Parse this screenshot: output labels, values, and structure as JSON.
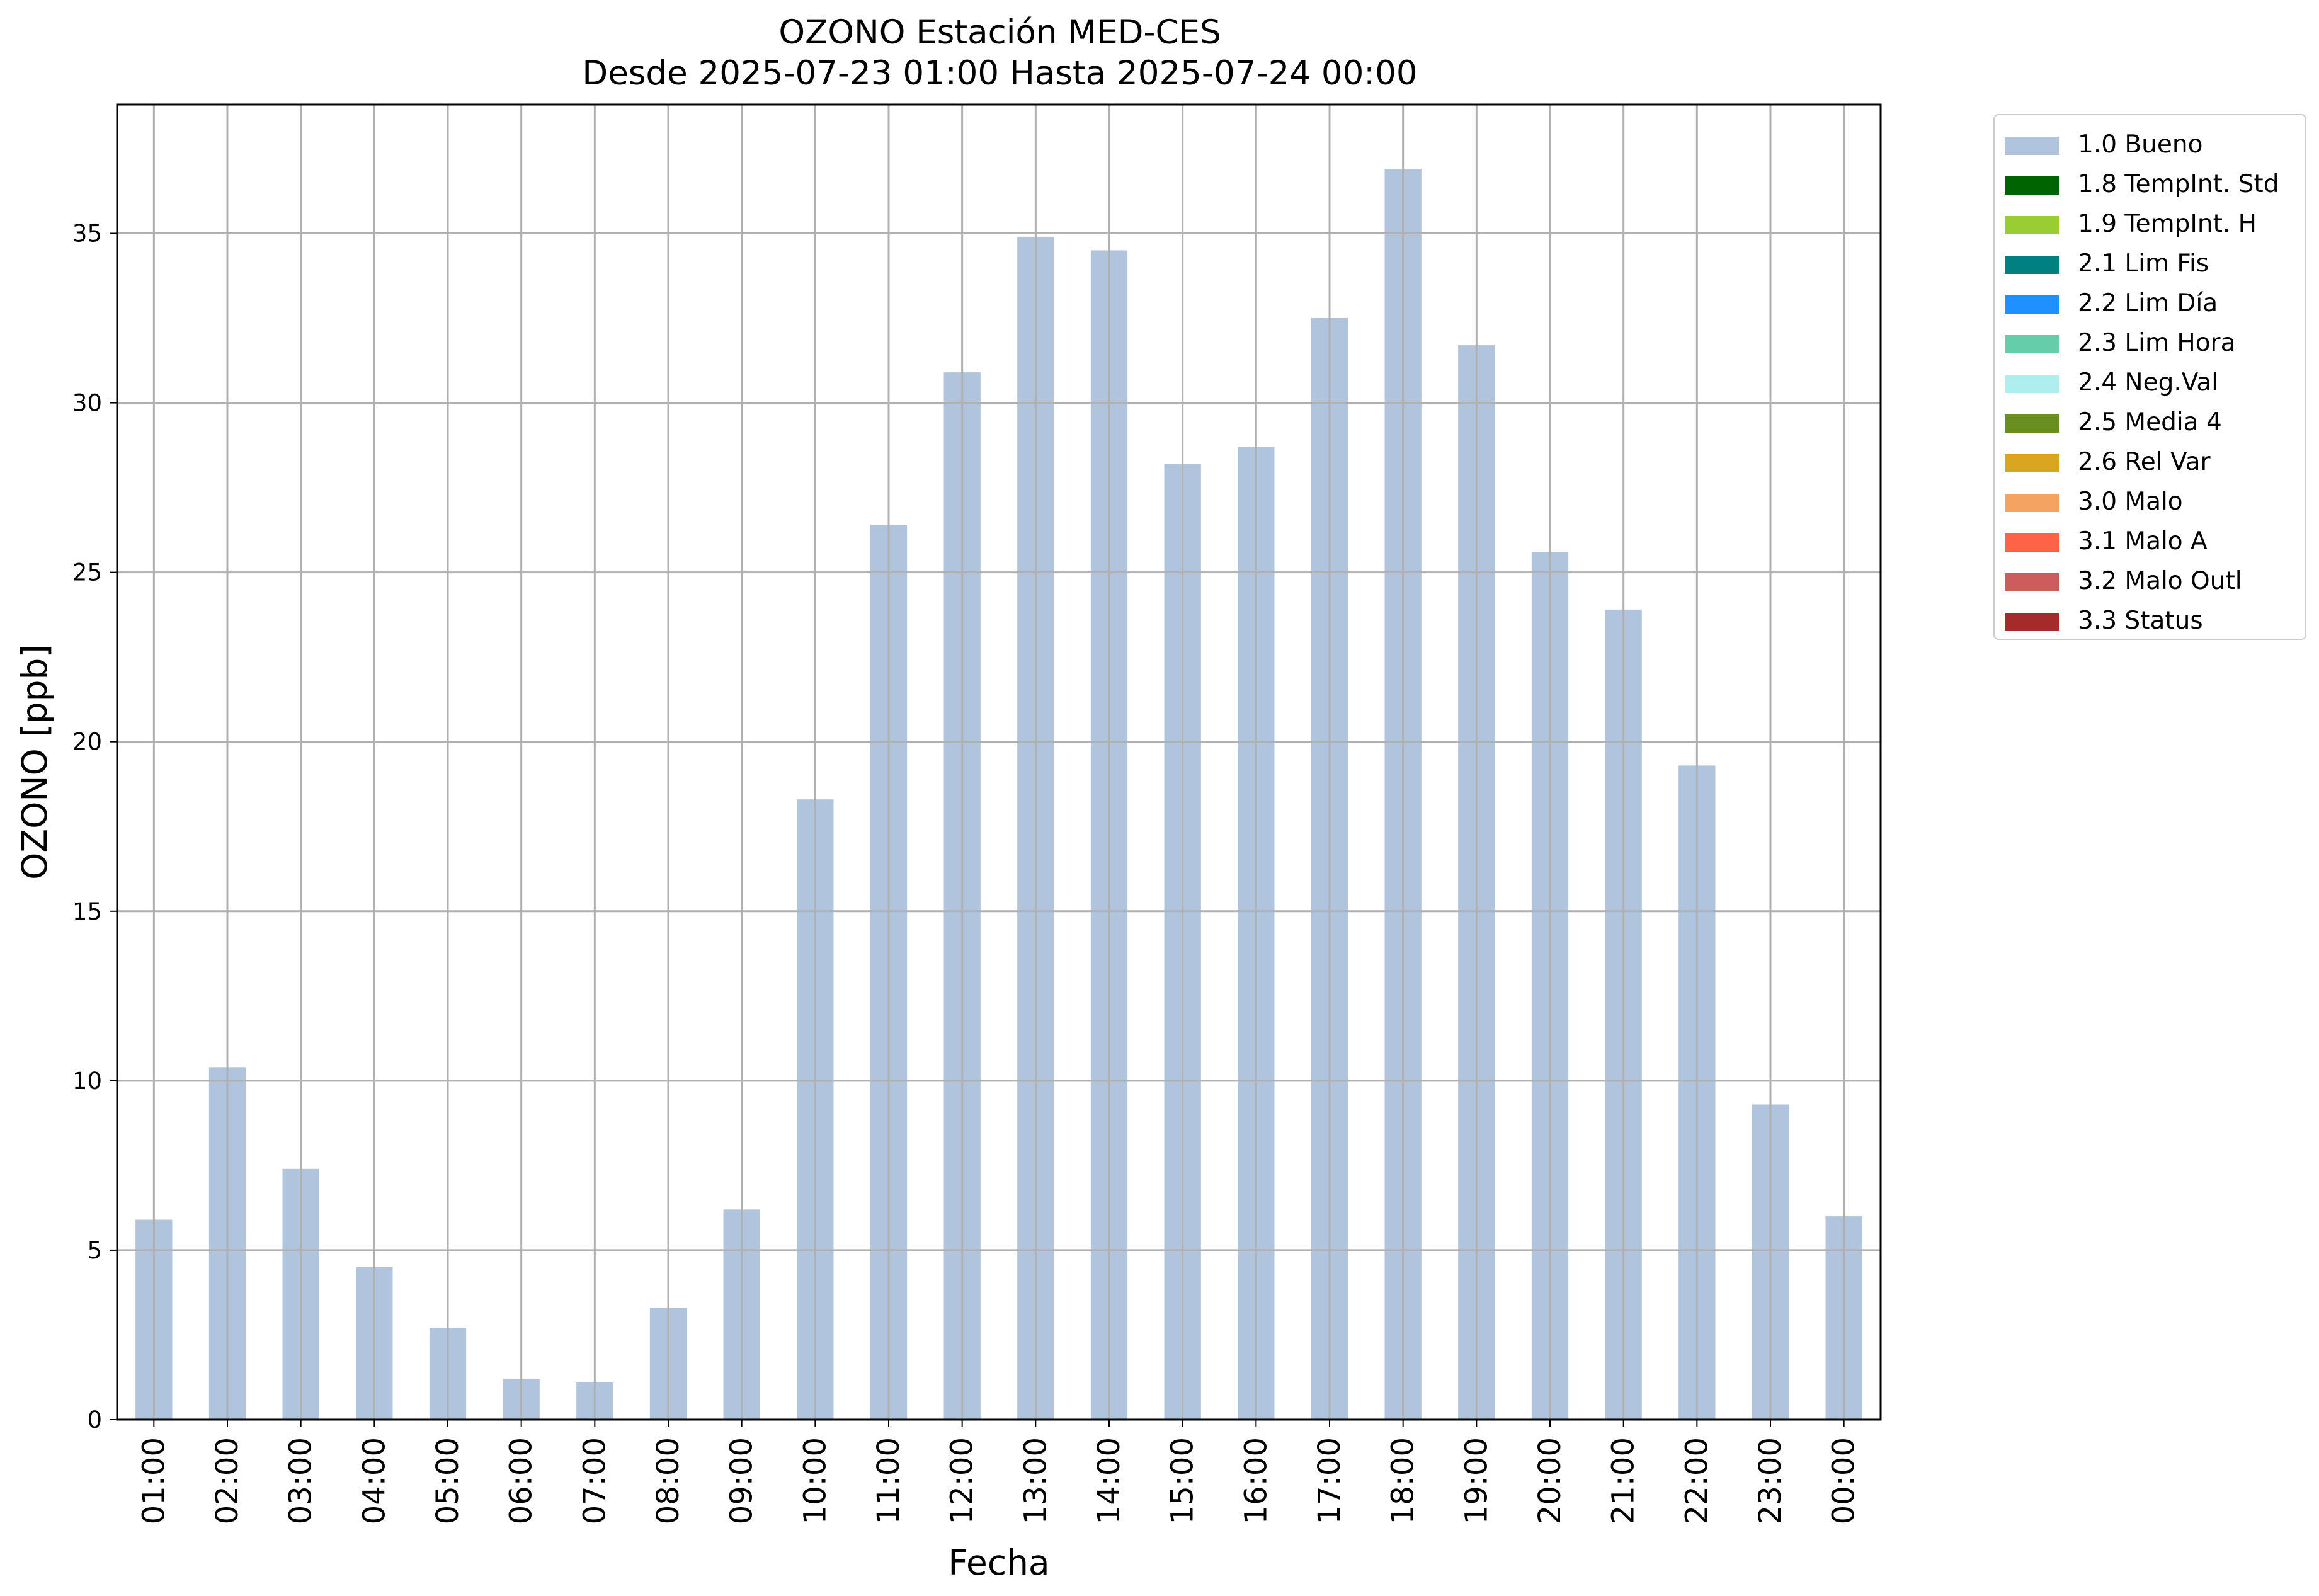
{
  "chart_data": {
    "type": "bar",
    "title": "OZONO Estación MED-CES",
    "subtitle": "Desde 2025-07-23 01:00 Hasta 2025-07-24 00:00",
    "xlabel": "Fecha",
    "ylabel": "OZONO [ppb]",
    "ylim": [
      0,
      38.8
    ],
    "yticks": [
      0,
      5,
      10,
      15,
      20,
      25,
      30,
      35
    ],
    "grid": true,
    "legend_position": "outside-top-right",
    "categories": [
      "01:00",
      "02:00",
      "03:00",
      "04:00",
      "05:00",
      "06:00",
      "07:00",
      "08:00",
      "09:00",
      "10:00",
      "11:00",
      "12:00",
      "13:00",
      "14:00",
      "15:00",
      "16:00",
      "17:00",
      "18:00",
      "19:00",
      "20:00",
      "21:00",
      "22:00",
      "23:00",
      "00:00"
    ],
    "series": [
      {
        "name": "1.0 Bueno",
        "color": "#b0c4de",
        "values": [
          5.9,
          10.4,
          7.4,
          4.5,
          2.7,
          1.2,
          1.1,
          3.3,
          6.2,
          18.3,
          26.4,
          30.9,
          34.9,
          34.5,
          28.2,
          28.7,
          32.5,
          36.9,
          31.7,
          25.6,
          23.9,
          19.3,
          9.3,
          6.0
        ]
      }
    ],
    "legend": [
      {
        "label": "1.0 Bueno",
        "color": "#b0c4de"
      },
      {
        "label": "1.8 TempInt. Std",
        "color": "#006400"
      },
      {
        "label": "1.9 TempInt. H",
        "color": "#9acd32"
      },
      {
        "label": "2.1 Lim Fis",
        "color": "#008080"
      },
      {
        "label": "2.2 Lim Día",
        "color": "#1e90ff"
      },
      {
        "label": "2.3 Lim Hora",
        "color": "#66cdaa"
      },
      {
        "label": "2.4 Neg.Val",
        "color": "#afeeee"
      },
      {
        "label": "2.5 Media 4",
        "color": "#6b8e23"
      },
      {
        "label": "2.6 Rel Var",
        "color": "#daa520"
      },
      {
        "label": "3.0 Malo",
        "color": "#f4a460"
      },
      {
        "label": "3.1 Malo A",
        "color": "#ff6347"
      },
      {
        "label": "3.2 Malo Outl",
        "color": "#cd5c5c"
      },
      {
        "label": "3.3 Status",
        "color": "#a52a2a"
      }
    ]
  }
}
